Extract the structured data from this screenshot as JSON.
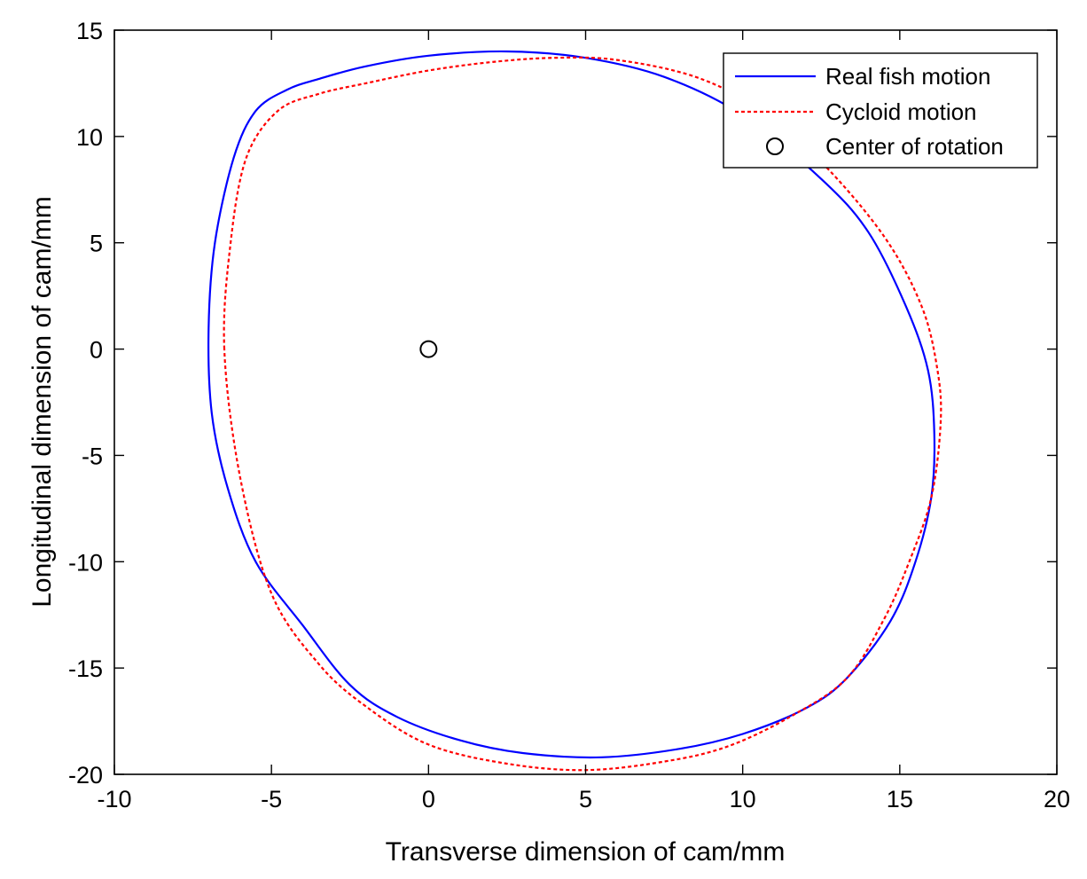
{
  "chart_data": {
    "type": "line",
    "xlabel": "Transverse dimension of cam/mm",
    "ylabel": "Longitudinal dimension of cam/mm",
    "xlim": [
      -10,
      20
    ],
    "ylim": [
      -20,
      15
    ],
    "xticks": [
      -10,
      -5,
      0,
      5,
      10,
      15,
      20
    ],
    "yticks": [
      -20,
      -15,
      -10,
      -5,
      0,
      5,
      10,
      15
    ],
    "grid": false,
    "legend_position": "top-right",
    "series": [
      {
        "name": "Real fish motion",
        "color": "#0000ff",
        "style": "solid",
        "x": [
          -7.0,
          -6.8,
          -6.2,
          -5.5,
          -4.5,
          -3.5,
          -2.0,
          0.0,
          2.5,
          5.0,
          7.5,
          10.0,
          12.5,
          14.0,
          15.2,
          15.9,
          16.1,
          16.0,
          15.5,
          14.7,
          13.3,
          12.0,
          10.0,
          8.0,
          5.5,
          3.0,
          1.0,
          -1.0,
          -2.5,
          -4.0,
          -5.5,
          -6.4,
          -6.9,
          -7.0
        ],
        "y": [
          1.0,
          5.0,
          9.0,
          11.2,
          12.2,
          12.7,
          13.3,
          13.8,
          14.0,
          13.7,
          12.8,
          11.0,
          8.0,
          5.5,
          2.0,
          -1.0,
          -4.0,
          -7.0,
          -10.0,
          -12.8,
          -15.5,
          -16.9,
          -18.1,
          -18.8,
          -19.2,
          -19.0,
          -18.4,
          -17.3,
          -15.8,
          -13.0,
          -10.0,
          -6.5,
          -3.0,
          1.0
        ]
      },
      {
        "name": "Cycloid motion",
        "color": "#ff0000",
        "style": "dashed",
        "x": [
          -6.5,
          -6.3,
          -5.8,
          -4.8,
          -3.5,
          -2.0,
          0.0,
          2.0,
          4.0,
          6.0,
          8.5,
          10.5,
          12.5,
          14.5,
          15.7,
          16.2,
          16.3,
          16.0,
          15.3,
          14.5,
          13.3,
          11.5,
          9.5,
          7.5,
          5.0,
          2.5,
          0.0,
          -2.0,
          -3.5,
          -5.0,
          -6.0,
          -6.5
        ],
        "y": [
          0.0,
          5.0,
          9.0,
          11.2,
          12.0,
          12.5,
          13.1,
          13.5,
          13.7,
          13.6,
          12.8,
          11.3,
          8.8,
          5.3,
          2.0,
          -1.0,
          -3.5,
          -7.0,
          -10.0,
          -12.7,
          -15.5,
          -17.3,
          -18.7,
          -19.4,
          -19.8,
          -19.5,
          -18.6,
          -16.8,
          -14.8,
          -11.5,
          -6.0,
          0.0
        ]
      },
      {
        "name": "Center of rotation",
        "color": "#000000",
        "style": "marker-circle",
        "x": [
          0
        ],
        "y": [
          0
        ]
      }
    ]
  }
}
